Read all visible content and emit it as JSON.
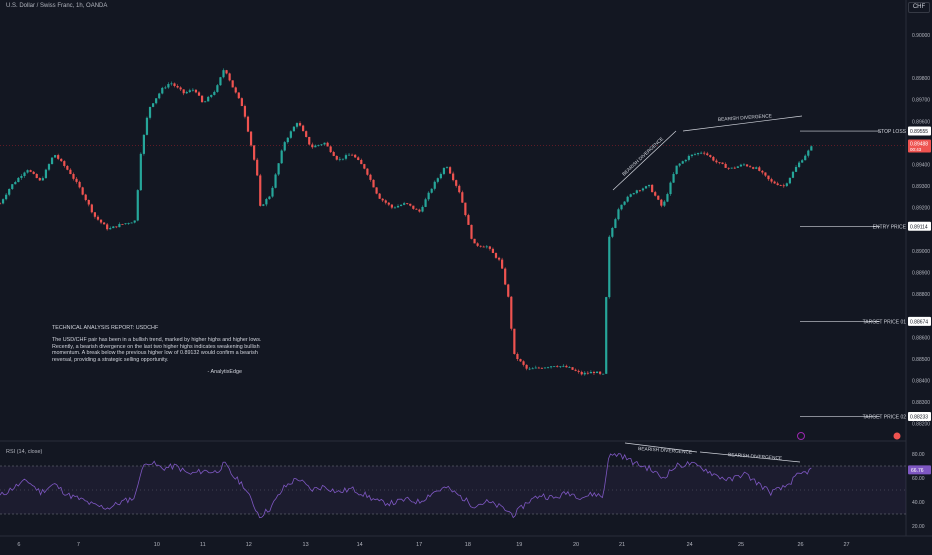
{
  "header": {
    "symbol_line": "U.S. Dollar / Swiss Franc, 1h, OANDA",
    "currency_button": "CHF"
  },
  "report": {
    "title": "TECHNICAL ANALYSIS REPORT: USDCHF",
    "body": "The USD/CHF pair has been in a bullish trend, marked by higher highs and higher lows. Recently, a bearish divergence on the last two higher highs indicates weakening bullish momentum. A break below the previous higher low of 0.89132 would confirm a bearish reversal, providing a strategic selling opportunity.",
    "signature": "- AnalytixEdge"
  },
  "annotations": {
    "divergence_price_1": "BEARISH DIVERGENCE",
    "divergence_price_2": "BEARISH DIVERGENCE",
    "divergence_rsi_1": "BEARISH DIVERGENCE",
    "divergence_rsi_2": "BEARISH DIVERGENCE"
  },
  "levels": [
    {
      "name": "STOP LOSS",
      "price": "0.89555",
      "value": 0.89555
    },
    {
      "name": "ENTRY PRICE",
      "price": "0.89114",
      "value": 0.89114
    },
    {
      "name": "TARGET PRICE 01",
      "price": "0.88674",
      "value": 0.88674
    },
    {
      "name": "TARGET PRICE 02",
      "price": "0.88233",
      "value": 0.88233
    }
  ],
  "current_price": {
    "price": "0.89488",
    "countdown": "00:43",
    "value": 0.89488
  },
  "rsi": {
    "label": "RSI (14, close)",
    "current": "66.76",
    "value": 66.76
  },
  "colors": {
    "up": "#26a69a",
    "down": "#ef5350",
    "bg": "#131722",
    "rsi": "#7e57c2",
    "text": "#d1d4dc"
  },
  "chart_data": [
    {
      "type": "candlestick",
      "title": "U.S. Dollar / Swiss Franc, 1h, OANDA",
      "x_tick_labels": [
        "6",
        "7",
        "10",
        "11",
        "12",
        "13",
        "14",
        "17",
        "18",
        "19",
        "20",
        "21",
        "24",
        "25",
        "26",
        "27"
      ],
      "y_tick_labels": [
        "0.90000",
        "0.89800",
        "0.89700",
        "0.89600",
        "0.89400",
        "0.89300",
        "0.89200",
        "0.89000",
        "0.88900",
        "0.88800",
        "0.88600",
        "0.88500",
        "0.88400",
        "0.88300",
        "0.88200"
      ],
      "ylim": [
        0.8818,
        0.9006
      ],
      "close_path": [
        [
          0,
          0.8922
        ],
        [
          0.4,
          0.893
        ],
        [
          1,
          0.8938
        ],
        [
          1.5,
          0.8932
        ],
        [
          2,
          0.8945
        ],
        [
          2.6,
          0.8936
        ],
        [
          3,
          0.8928
        ],
        [
          3.5,
          0.8916
        ],
        [
          4,
          0.891
        ],
        [
          4.4,
          0.8912
        ],
        [
          5,
          0.8914
        ],
        [
          5.2,
          0.8945
        ],
        [
          5.5,
          0.8966
        ],
        [
          6,
          0.8975
        ],
        [
          6.3,
          0.8978
        ],
        [
          6.8,
          0.8973
        ],
        [
          7.2,
          0.8975
        ],
        [
          7.5,
          0.8968
        ],
        [
          8,
          0.8975
        ],
        [
          8.3,
          0.8985
        ],
        [
          8.6,
          0.8976
        ],
        [
          9,
          0.8966
        ],
        [
          9.5,
          0.8936
        ],
        [
          9.6,
          0.892
        ],
        [
          10,
          0.8926
        ],
        [
          10.5,
          0.895
        ],
        [
          11,
          0.896
        ],
        [
          11.5,
          0.8948
        ],
        [
          12,
          0.895
        ],
        [
          12.5,
          0.8942
        ],
        [
          13,
          0.8945
        ],
        [
          13.5,
          0.8938
        ],
        [
          14,
          0.8925
        ],
        [
          14.5,
          0.892
        ],
        [
          15,
          0.8922
        ],
        [
          15.5,
          0.8918
        ],
        [
          16,
          0.893
        ],
        [
          16.5,
          0.894
        ],
        [
          17,
          0.8927
        ],
        [
          17.5,
          0.8903
        ],
        [
          18,
          0.8902
        ],
        [
          18.5,
          0.8895
        ],
        [
          18.8,
          0.8878
        ],
        [
          19,
          0.8852
        ],
        [
          19.5,
          0.8845
        ],
        [
          20,
          0.8846
        ],
        [
          20.5,
          0.8847
        ],
        [
          21,
          0.8846
        ],
        [
          21.5,
          0.8843
        ],
        [
          22,
          0.8844
        ],
        [
          22.3,
          0.8842
        ],
        [
          22.5,
          0.8905
        ],
        [
          22.9,
          0.8921
        ],
        [
          23.5,
          0.8928
        ],
        [
          24,
          0.893
        ],
        [
          24.5,
          0.892
        ],
        [
          25,
          0.8939
        ],
        [
          25.5,
          0.8944
        ],
        [
          26,
          0.8946
        ],
        [
          26.5,
          0.8941
        ],
        [
          27,
          0.8938
        ],
        [
          27.5,
          0.894
        ],
        [
          28,
          0.8938
        ],
        [
          28.5,
          0.8932
        ],
        [
          29,
          0.893
        ],
        [
          29.5,
          0.894
        ],
        [
          30,
          0.8948
        ]
      ],
      "x_tick_positions": [
        0.7,
        2.9,
        5.8,
        7.5,
        9.2,
        11.3,
        13.3,
        15.5,
        17.3,
        19.2,
        21.3,
        23.0,
        25.5,
        27.4,
        29.6,
        31.3
      ],
      "x_domain": [
        0,
        33.5
      ]
    },
    {
      "type": "line",
      "title": "RSI (14, close)",
      "y_tick_labels": [
        "80.00",
        "60.00",
        "40.00",
        "20.00"
      ],
      "ylim": [
        15,
        85
      ],
      "bands": [
        30,
        70
      ],
      "path": [
        [
          0,
          45
        ],
        [
          0.5,
          52
        ],
        [
          1,
          58
        ],
        [
          1.5,
          48
        ],
        [
          2,
          55
        ],
        [
          2.5,
          46
        ],
        [
          3,
          42
        ],
        [
          3.5,
          37
        ],
        [
          4,
          35
        ],
        [
          4.5,
          40
        ],
        [
          5,
          44
        ],
        [
          5.2,
          66
        ],
        [
          5.5,
          74
        ],
        [
          6,
          68
        ],
        [
          6.5,
          70
        ],
        [
          7,
          63
        ],
        [
          7.5,
          66
        ],
        [
          8,
          65
        ],
        [
          8.3,
          72
        ],
        [
          8.6,
          62
        ],
        [
          9,
          54
        ],
        [
          9.6,
          28
        ],
        [
          10,
          35
        ],
        [
          10.5,
          52
        ],
        [
          11,
          60
        ],
        [
          11.5,
          50
        ],
        [
          12,
          53
        ],
        [
          12.5,
          48
        ],
        [
          13,
          51
        ],
        [
          13.5,
          46
        ],
        [
          14,
          40
        ],
        [
          14.5,
          39
        ],
        [
          15,
          42
        ],
        [
          15.5,
          40
        ],
        [
          16,
          48
        ],
        [
          16.5,
          52
        ],
        [
          17,
          45
        ],
        [
          17.5,
          37
        ],
        [
          18,
          40
        ],
        [
          18.5,
          36
        ],
        [
          18.8,
          32
        ],
        [
          19,
          29
        ],
        [
          19.5,
          40
        ],
        [
          20,
          46
        ],
        [
          20.5,
          43
        ],
        [
          21,
          48
        ],
        [
          21.5,
          44
        ],
        [
          22,
          47
        ],
        [
          22.3,
          44
        ],
        [
          22.5,
          78
        ],
        [
          22.9,
          80
        ],
        [
          23.5,
          72
        ],
        [
          24,
          68
        ],
        [
          24.5,
          60
        ],
        [
          25,
          70
        ],
        [
          25.5,
          72
        ],
        [
          26,
          68
        ],
        [
          26.5,
          62
        ],
        [
          27,
          58
        ],
        [
          27.5,
          64
        ],
        [
          28,
          56
        ],
        [
          28.5,
          48
        ],
        [
          29,
          52
        ],
        [
          29.5,
          62
        ],
        [
          30,
          66.8
        ]
      ]
    }
  ]
}
